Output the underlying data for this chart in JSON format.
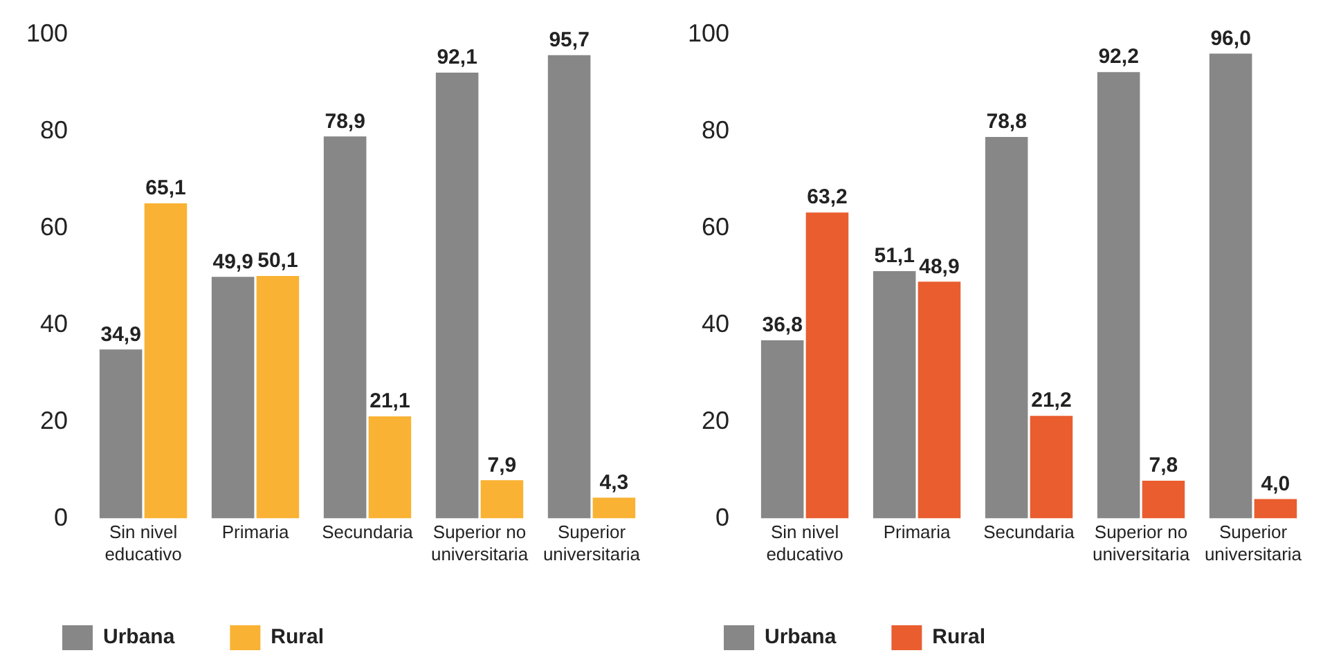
{
  "chart_data": [
    {
      "type": "bar",
      "categories": [
        "Sin nivel educativo",
        "Primaria",
        "Secundaria",
        "Superior no universitaria",
        "Superior universitaria"
      ],
      "series": [
        {
          "name": "Urbana",
          "color": "#878787",
          "values": [
            34.9,
            49.9,
            78.9,
            92.1,
            95.7
          ],
          "value_labels": [
            "34,9",
            "49,9",
            "78,9",
            "92,1",
            "95,7"
          ]
        },
        {
          "name": "Rural",
          "color": "#f9b233",
          "values": [
            65.1,
            50.1,
            21.1,
            7.9,
            4.3
          ],
          "value_labels": [
            "65,1",
            "50,1",
            "21,1",
            "7,9",
            "4,3"
          ]
        }
      ],
      "ylim": [
        0,
        100
      ],
      "yticks": [
        0,
        20,
        40,
        60,
        80,
        100
      ],
      "grid": false,
      "legend": "bottom"
    },
    {
      "type": "bar",
      "categories": [
        "Sin nivel educativo",
        "Primaria",
        "Secundaria",
        "Superior no universitaria",
        "Superior universitaria"
      ],
      "series": [
        {
          "name": "Urbana",
          "color": "#878787",
          "values": [
            36.8,
            51.1,
            78.8,
            92.2,
            96.0
          ],
          "value_labels": [
            "36,8",
            "51,1",
            "78,8",
            "92,2",
            "96,0"
          ]
        },
        {
          "name": "Rural",
          "color": "#e95d2f",
          "values": [
            63.2,
            48.9,
            21.2,
            7.8,
            4.0
          ],
          "value_labels": [
            "63,2",
            "48,9",
            "21,2",
            "7,8",
            "4,0"
          ]
        }
      ],
      "ylim": [
        0,
        100
      ],
      "yticks": [
        0,
        20,
        40,
        60,
        80,
        100
      ],
      "grid": false,
      "legend": "bottom"
    }
  ]
}
